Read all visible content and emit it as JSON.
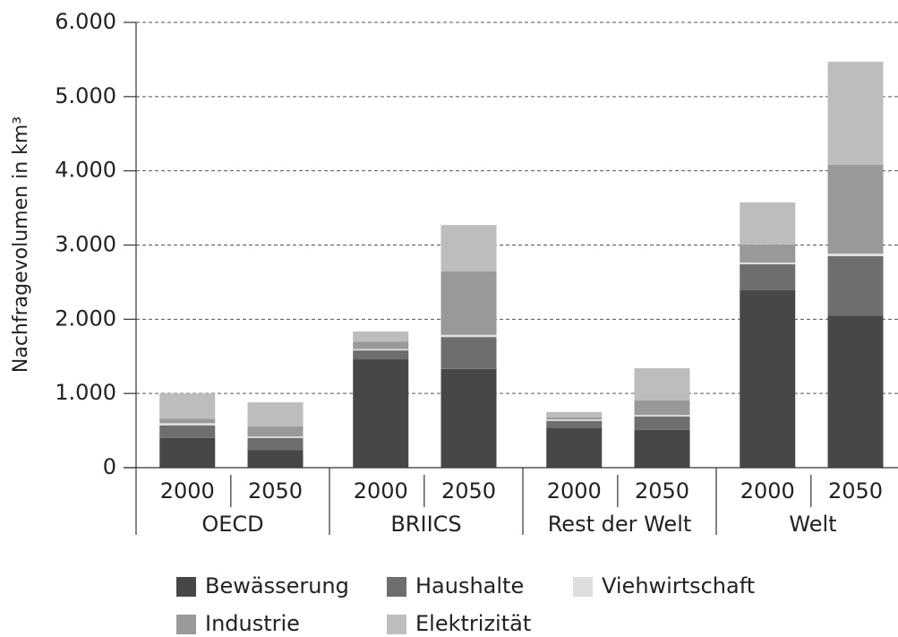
{
  "chart_data": {
    "type": "stacked_bar",
    "ylabel": "Nachfragevolumen in km³",
    "groups": [
      "OECD",
      "BRIICS",
      "Rest der Welt",
      "Welt"
    ],
    "categories": [
      "2000",
      "2050",
      "2000",
      "2050",
      "2000",
      "2050",
      "2000",
      "2050"
    ],
    "series": [
      {
        "name": "Bewässerung",
        "color": "#474747",
        "values": [
          400,
          240,
          1460,
          1330,
          540,
          510,
          2390,
          2050
        ]
      },
      {
        "name": "Haushalte",
        "color": "#6e6e6e",
        "values": [
          170,
          160,
          120,
          430,
          90,
          180,
          350,
          800
        ]
      },
      {
        "name": "Viehwirtschaft",
        "color": "#dedede",
        "values": [
          30,
          20,
          20,
          30,
          20,
          20,
          25,
          35
        ]
      },
      {
        "name": "Industrie",
        "color": "#999999",
        "values": [
          60,
          135,
          100,
          855,
          25,
          195,
          240,
          1195
        ]
      },
      {
        "name": "Elektrizität",
        "color": "#bdbdbd",
        "values": [
          340,
          325,
          135,
          625,
          75,
          435,
          570,
          1390
        ]
      }
    ],
    "ylim": [
      0,
      6000
    ],
    "yticks": [
      0,
      {
        "value": 1000,
        "label": "1.000"
      },
      {
        "value": 2000,
        "label": "2.000"
      },
      {
        "value": 3000,
        "label": "3.000"
      },
      {
        "value": 4000,
        "label": "4.000"
      },
      {
        "value": 5000,
        "label": "5.000"
      },
      {
        "value": 6000,
        "label": "6.000"
      }
    ],
    "grid": true
  }
}
